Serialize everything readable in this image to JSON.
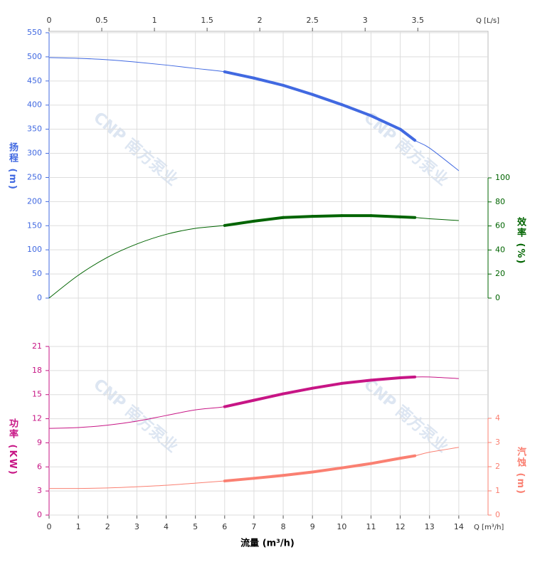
{
  "chart_data": {
    "type": "line",
    "x_label": "流量 (m³/h)",
    "x_unit_label": "Q [m³/h]",
    "xlim": [
      0,
      15
    ],
    "xticks": [
      0,
      1,
      2,
      3,
      4,
      5,
      6,
      7,
      8,
      9,
      10,
      11,
      12,
      13,
      14
    ],
    "x2_label": "Q [L/s]",
    "x2lim": [
      0,
      4.1667
    ],
    "x2ticks": [
      0,
      0.5,
      1,
      1.5,
      2,
      2.5,
      3,
      3.5
    ],
    "grid": true,
    "watermark": "CNP 南方泵业",
    "operating_range": [
      6,
      12.5
    ],
    "x": [
      0,
      1,
      2,
      3,
      4,
      5,
      6,
      7,
      8,
      9,
      10,
      11,
      12,
      12.5,
      13,
      14
    ],
    "axes": [
      {
        "label": "扬程 (m)",
        "side": "left",
        "color": "#4169e1",
        "ylim": [
          0,
          550
        ],
        "yticks": [
          0,
          50,
          100,
          150,
          200,
          250,
          300,
          350,
          400,
          450,
          500,
          550
        ],
        "values": [
          498.5,
          497,
          494,
          489,
          483,
          476,
          469,
          456,
          441,
          422,
          401,
          378,
          350,
          327,
          311,
          264
        ]
      },
      {
        "label": "效率 (%)",
        "side": "right",
        "color": "#006400",
        "ylim": [
          0,
          100
        ],
        "yticks": [
          0,
          20,
          40,
          60,
          80,
          100
        ],
        "values": [
          0,
          19,
          34,
          45,
          53,
          58,
          60.4,
          64,
          67,
          68,
          68.6,
          68.6,
          67.5,
          67,
          66,
          64.5
        ]
      },
      {
        "label": "功率 (KW)",
        "side": "left",
        "color": "#c71585",
        "ylim": [
          0,
          21
        ],
        "yticks": [
          0,
          3,
          6,
          9,
          12,
          15,
          18,
          21
        ],
        "values": [
          10.8,
          10.9,
          11.2,
          11.7,
          12.4,
          13.1,
          13.5,
          14.3,
          15.1,
          15.8,
          16.4,
          16.8,
          17.1,
          17.2,
          17.2,
          17.0
        ]
      },
      {
        "label": "汽蚀 (m)",
        "side": "right",
        "color": "#fa8072",
        "ylim": [
          0,
          4
        ],
        "yticks": [
          0,
          1,
          2,
          3,
          4
        ],
        "values": [
          1.1,
          1.1,
          1.12,
          1.17,
          1.23,
          1.32,
          1.41,
          1.52,
          1.64,
          1.78,
          1.95,
          2.13,
          2.35,
          2.45,
          2.6,
          2.8
        ]
      }
    ]
  }
}
